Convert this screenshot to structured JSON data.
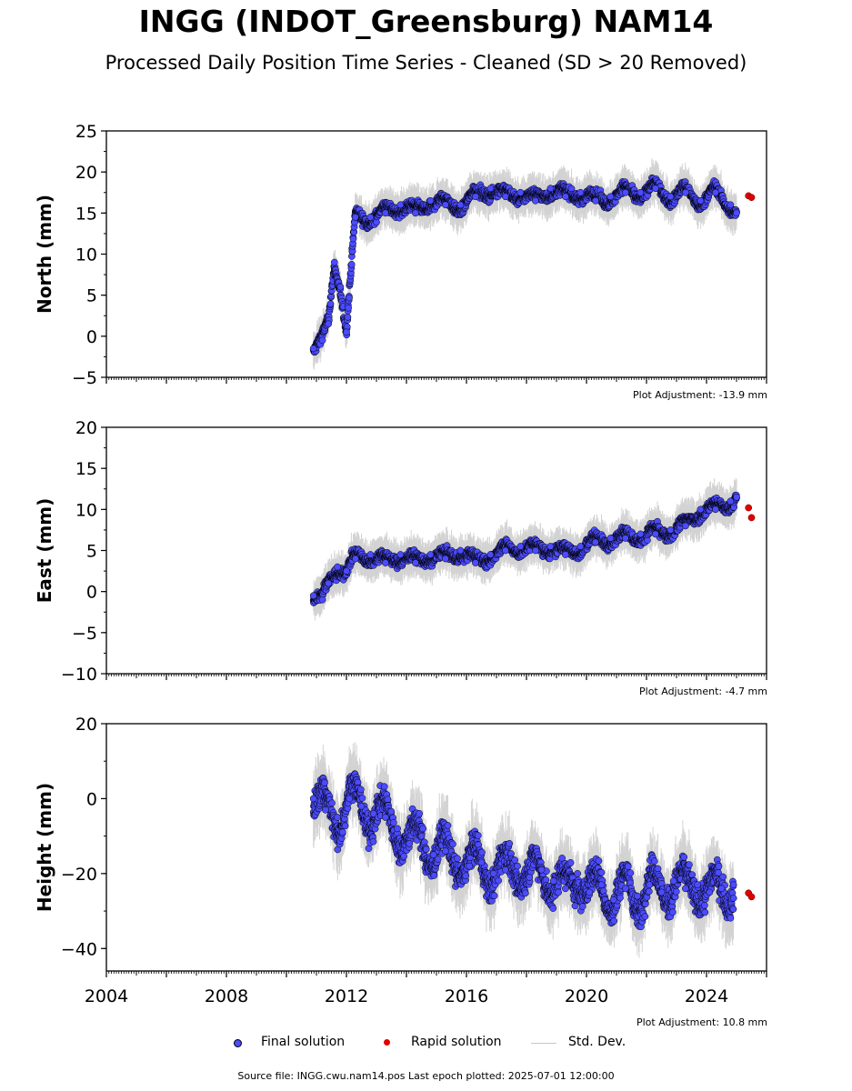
{
  "title": "INGG (INDOT_Greensburg) NAM14",
  "subtitle": "Processed Daily Position Time Series - Cleaned (SD > 20 Removed)",
  "legend": {
    "final": "Final solution",
    "rapid": "Rapid solution",
    "std": "Std. Dev."
  },
  "source_note": "Source file: INGG.cwu.nam14.pos  Last epoch plotted: 2025-07-01 12:00:00",
  "colors": {
    "final": "#4b4bff",
    "rapid": "#e00000",
    "stddev": "#b0b0b0",
    "outline": "#000000"
  },
  "chart_data": [
    {
      "type": "scatter",
      "ylabel": "North (mm)",
      "ylim": [
        -5,
        25
      ],
      "yticks": [
        -5,
        0,
        5,
        10,
        15,
        20,
        25
      ],
      "xlim": [
        2004.0,
        2026.0
      ],
      "adjustment": "Plot Adjustment: -13.9 mm",
      "series": [
        {
          "name": "Final solution",
          "x": [
            2010.9,
            2011.2,
            2011.4,
            2011.6,
            2011.8,
            2012.0,
            2012.3,
            2012.8,
            2013.3,
            2013.8,
            2014.3,
            2014.8,
            2015.3,
            2015.8,
            2016.3,
            2016.8,
            2017.3,
            2017.8,
            2018.3,
            2018.8,
            2019.3,
            2019.8,
            2020.3,
            2020.8,
            2021.3,
            2021.8,
            2022.3,
            2022.8,
            2023.3,
            2023.8,
            2024.3,
            2024.8,
            2025.0
          ],
          "y": [
            -1.5,
            -0.5,
            1.5,
            9.0,
            6.0,
            0.5,
            14.5,
            14.5,
            15.0,
            16.0,
            15.0,
            16.5,
            16.0,
            16.0,
            17.0,
            18.0,
            17.0,
            17.5,
            16.5,
            18.0,
            17.0,
            17.5,
            16.5,
            17.0,
            17.5,
            17.5,
            18.0,
            17.0,
            17.5,
            16.5,
            17.5,
            16.0,
            15.0
          ]
        },
        {
          "name": "Rapid solution",
          "x": [
            2025.4,
            2025.5
          ],
          "y": [
            17.1,
            16.9
          ]
        }
      ]
    },
    {
      "type": "scatter",
      "ylabel": "East (mm)",
      "ylim": [
        -10,
        20
      ],
      "yticks": [
        -10,
        -5,
        0,
        5,
        10,
        15,
        20
      ],
      "xlim": [
        2004.0,
        2026.0
      ],
      "adjustment": "Plot Adjustment: -4.7 mm",
      "series": [
        {
          "name": "Final solution",
          "x": [
            2010.9,
            2011.2,
            2011.4,
            2011.7,
            2012.0,
            2012.3,
            2012.8,
            2013.3,
            2013.8,
            2014.3,
            2014.8,
            2015.3,
            2015.8,
            2016.3,
            2016.8,
            2017.3,
            2017.8,
            2018.3,
            2018.8,
            2019.3,
            2019.8,
            2020.3,
            2020.8,
            2021.3,
            2021.8,
            2022.3,
            2022.8,
            2023.3,
            2023.8,
            2024.3,
            2024.8,
            2025.0
          ],
          "y": [
            -0.5,
            -1.0,
            1.0,
            3.0,
            2.5,
            4.0,
            4.5,
            3.5,
            4.5,
            3.5,
            4.5,
            4.0,
            5.0,
            3.5,
            4.5,
            5.0,
            5.5,
            5.0,
            5.5,
            4.5,
            5.5,
            6.0,
            6.5,
            6.5,
            7.0,
            7.0,
            7.5,
            8.0,
            10.0,
            10.0,
            11.0,
            11.5
          ]
        },
        {
          "name": "Rapid solution",
          "x": [
            2025.4,
            2025.5
          ],
          "y": [
            10.2,
            9.0
          ]
        }
      ]
    },
    {
      "type": "scatter",
      "ylabel": "Height (mm)",
      "ylim": [
        -46,
        20
      ],
      "yticks": [
        -40,
        -20,
        0,
        20
      ],
      "xlim": [
        2004.0,
        2026.0
      ],
      "xticks": [
        "2004",
        "2008",
        "2012",
        "2016",
        "2020",
        "2024"
      ],
      "adjustment": "Plot Adjustment: 10.8 mm",
      "series": [
        {
          "name": "Final solution",
          "x": [
            2010.9,
            2011.3,
            2011.7,
            2012.1,
            2012.5,
            2012.9,
            2013.3,
            2013.7,
            2014.1,
            2014.5,
            2014.9,
            2015.3,
            2015.7,
            2016.1,
            2016.5,
            2016.9,
            2017.3,
            2017.7,
            2018.1,
            2018.5,
            2018.9,
            2019.3,
            2019.7,
            2020.1,
            2020.5,
            2020.9,
            2021.3,
            2021.7,
            2022.1,
            2022.5,
            2022.9,
            2023.3,
            2023.7,
            2024.1,
            2024.5,
            2024.9
          ],
          "y": [
            0,
            -3,
            -5,
            0,
            -2,
            -4,
            -5,
            -8,
            -12,
            -10,
            -15,
            -14,
            -16,
            -18,
            -17,
            -20,
            -19,
            -18,
            -21,
            -19,
            -22,
            -24,
            -20,
            -25,
            -23,
            -27,
            -24,
            -26,
            -23,
            -25,
            -22,
            -24,
            -23,
            -25,
            -24,
            -23
          ]
        },
        {
          "name": "Rapid solution",
          "x": [
            2025.4,
            2025.5
          ],
          "y": [
            -25.2,
            -26.2
          ]
        }
      ]
    }
  ]
}
